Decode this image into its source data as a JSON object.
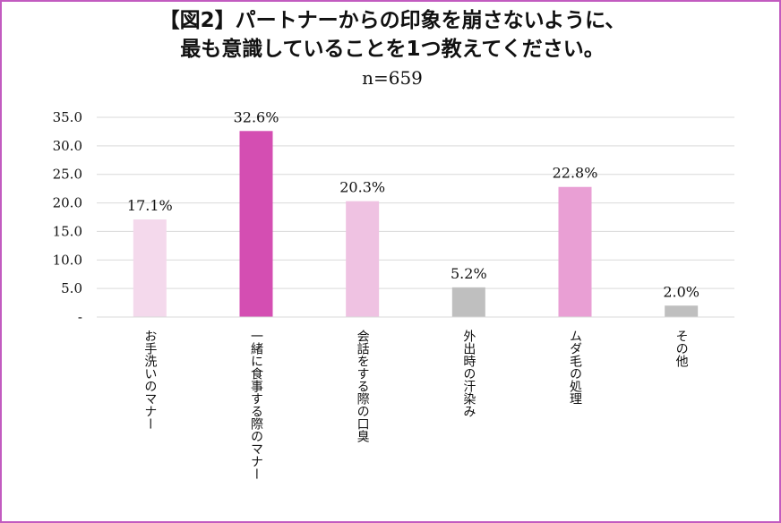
{
  "chart_data": {
    "type": "bar",
    "title": "【図2】パートナーからの印象を崩さないように、",
    "title_line2": "最も意識していることを1つ教えてください。",
    "subtitle": "n=659",
    "categories": [
      "お手洗いのマナー",
      "一緒に食事する際のマナー",
      "会話をする際の口臭",
      "外出時の汗染み",
      "ムダ毛の処理",
      "その他"
    ],
    "values": [
      17.1,
      32.6,
      20.3,
      5.2,
      22.8,
      2.0
    ],
    "data_labels": [
      "17.1%",
      "32.6%",
      "20.3%",
      "5.2%",
      "22.8%",
      "2.0%"
    ],
    "bar_colors": [
      "#f4d9ec",
      "#d44eb2",
      "#efc2e2",
      "#bfbfbf",
      "#e99fd4",
      "#bfbfbf"
    ],
    "y_ticks": [
      "35.0",
      "30.0",
      "25.0",
      "20.0",
      "15.0",
      "10.0",
      "5.0",
      "-"
    ],
    "y_tick_values": [
      35,
      30,
      25,
      20,
      15,
      10,
      5,
      0
    ],
    "ylim": [
      0,
      35
    ],
    "xlabel": "",
    "ylabel": "",
    "grid": true,
    "legend": "none"
  },
  "colors": {
    "frame_border": "#c25bc0",
    "gridline": "#d9d9d9"
  }
}
